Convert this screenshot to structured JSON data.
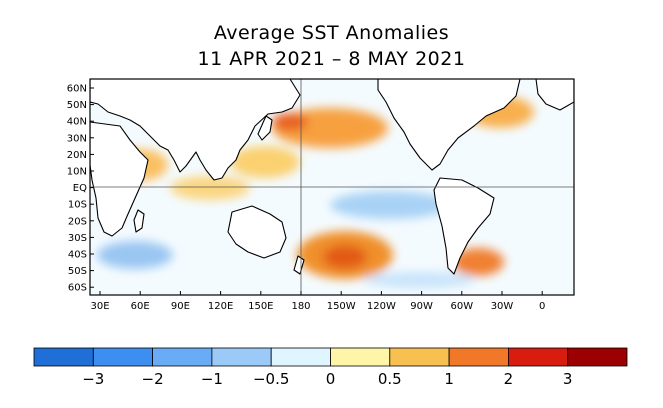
{
  "title": {
    "line1": "Average SST Anomalies",
    "line2": "11 APR 2021 – 8 MAY 2021"
  },
  "map": {
    "type": "world-sst-anomaly",
    "lat_labels": [
      "60N",
      "50N",
      "40N",
      "30N",
      "20N",
      "10N",
      "EQ",
      "10S",
      "20S",
      "30S",
      "40S",
      "50S",
      "60S"
    ],
    "lon_labels": [
      "30E",
      "60E",
      "90E",
      "120E",
      "150E",
      "180",
      "150W",
      "120W",
      "90W",
      "60W",
      "30W",
      "0"
    ],
    "reference_lines": [
      "EQ",
      "180"
    ],
    "anomaly_regions": [
      {
        "name": "north-pacific-warm",
        "level": 1.5
      },
      {
        "name": "northwest-pacific-warm",
        "level": 0.75
      },
      {
        "name": "south-pacific-warm",
        "level": 1.5
      },
      {
        "name": "south-atlantic-warm",
        "level": 1.0
      },
      {
        "name": "equatorial-pacific-cool",
        "level": -0.75
      },
      {
        "name": "north-atlantic-warm",
        "level": 1.0
      },
      {
        "name": "southern-indian-cool",
        "level": -0.75
      }
    ]
  },
  "colorbar": {
    "labels": [
      "−3",
      "−2",
      "−1",
      "−0.5",
      "0",
      "0.5",
      "1",
      "2",
      "3"
    ],
    "colors": [
      "#1f6fd6",
      "#3c8ff0",
      "#6aabf5",
      "#9ccaf8",
      "#dff5ff",
      "#fff5a8",
      "#f7c050",
      "#f07828",
      "#d81c10",
      "#9c0000"
    ]
  }
}
